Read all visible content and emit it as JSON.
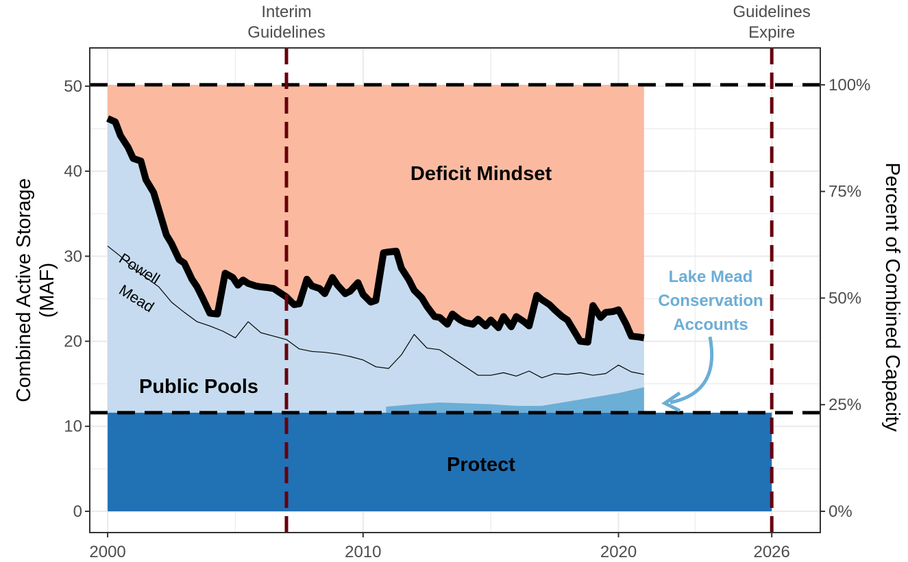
{
  "chart_data": {
    "type": "area",
    "title": "",
    "xlabel": "",
    "ylabel": "Combined Active Storage\n(MAF)",
    "y2label": "Percent of Combined Capacity",
    "xlim": [
      1999.3,
      2027.9
    ],
    "ylim": [
      -2.5,
      54.5
    ],
    "x_ticks": [
      2000,
      2010,
      2020,
      2026
    ],
    "y_ticks": [
      0,
      10,
      20,
      30,
      40,
      50
    ],
    "y2_ticks": [
      {
        "value": 0,
        "label": "0%"
      },
      {
        "value": 12.54,
        "label": "25%"
      },
      {
        "value": 25.08,
        "label": "50%"
      },
      {
        "value": 37.62,
        "label": "75%"
      },
      {
        "value": 50.16,
        "label": "100%"
      }
    ],
    "grid": true,
    "zones": {
      "deficit": {
        "label": "Deficit Mindset",
        "color": "#fbbaa0"
      },
      "public": {
        "label": "Public Pools",
        "color": "#c6dbef"
      },
      "protect": {
        "label": "Protect",
        "color": "#2171b5",
        "top": 11.6,
        "x_end": 2026
      }
    },
    "capacity_line": 50.16,
    "protect_line": 11.6,
    "vertical_guides": [
      {
        "x": 2007,
        "label": "Interim\nGuidelines",
        "color": "#67000d"
      },
      {
        "x": 2026,
        "label": "Guidelines\nExpire",
        "color": "#67000d"
      }
    ],
    "series": [
      {
        "name": "Combined",
        "color": "#000000",
        "x": [
          2000.0,
          2000.3,
          2000.5,
          2000.8,
          2001.0,
          2001.3,
          2001.5,
          2001.8,
          2002.0,
          2002.3,
          2002.5,
          2002.8,
          2003.0,
          2003.3,
          2003.5,
          2003.7,
          2004.0,
          2004.3,
          2004.6,
          2004.9,
          2005.1,
          2005.3,
          2005.5,
          2005.8,
          2006.0,
          2006.3,
          2006.5,
          2006.8,
          2007.0,
          2007.3,
          2007.5,
          2007.8,
          2008.0,
          2008.3,
          2008.5,
          2008.8,
          2009.0,
          2009.3,
          2009.5,
          2009.8,
          2010.0,
          2010.3,
          2010.5,
          2010.8,
          2011.0,
          2011.3,
          2011.5,
          2011.8,
          2012.0,
          2012.3,
          2012.5,
          2012.8,
          2013.0,
          2013.3,
          2013.5,
          2013.8,
          2014.0,
          2014.3,
          2014.5,
          2014.8,
          2015.0,
          2015.3,
          2015.5,
          2015.8,
          2016.0,
          2016.3,
          2016.5,
          2016.8,
          2017.0,
          2017.3,
          2017.5,
          2017.8,
          2018.0,
          2018.3,
          2018.5,
          2018.8,
          2019.0,
          2019.3,
          2019.5,
          2019.8,
          2020.0,
          2020.3,
          2020.5,
          2020.8,
          2021.0
        ],
        "values": [
          46.2,
          45.8,
          44.2,
          42.8,
          41.5,
          41.2,
          39.0,
          37.5,
          35.5,
          32.5,
          31.5,
          29.6,
          29.2,
          27.3,
          26.4,
          25.2,
          23.3,
          23.2,
          28.0,
          27.5,
          26.6,
          27.2,
          26.8,
          26.5,
          26.4,
          26.3,
          26.2,
          25.6,
          25.2,
          24.3,
          24.4,
          27.3,
          26.5,
          26.2,
          25.6,
          27.5,
          26.6,
          25.6,
          25.9,
          26.9,
          25.5,
          24.6,
          24.8,
          30.4,
          30.5,
          30.6,
          28.6,
          27.2,
          26.0,
          25.1,
          24.1,
          22.9,
          22.8,
          22.0,
          23.2,
          22.5,
          22.2,
          22.0,
          22.6,
          21.8,
          22.5,
          21.6,
          22.9,
          21.7,
          22.9,
          22.3,
          21.8,
          25.4,
          24.9,
          24.3,
          23.7,
          22.9,
          22.5,
          21.0,
          20.0,
          19.9,
          24.2,
          22.8,
          23.4,
          23.5,
          23.7,
          22.0,
          20.6,
          20.5,
          20.4
        ]
      },
      {
        "name": "Mead",
        "color": "#000000",
        "x": [
          2000.0,
          2000.5,
          2001.0,
          2001.5,
          2002.0,
          2002.5,
          2003.0,
          2003.5,
          2004.0,
          2004.5,
          2005.0,
          2005.5,
          2006.0,
          2006.5,
          2007.0,
          2007.5,
          2008.0,
          2008.5,
          2009.0,
          2009.5,
          2010.0,
          2010.5,
          2011.0,
          2011.5,
          2012.0,
          2012.5,
          2013.0,
          2013.5,
          2014.0,
          2014.5,
          2015.0,
          2015.5,
          2016.0,
          2016.5,
          2017.0,
          2017.5,
          2018.0,
          2018.5,
          2019.0,
          2019.5,
          2020.0,
          2020.5,
          2021.0
        ],
        "values": [
          31.2,
          30.0,
          28.6,
          27.5,
          26.4,
          24.6,
          23.4,
          22.3,
          21.8,
          21.2,
          20.4,
          22.3,
          21.0,
          20.6,
          20.2,
          19.1,
          18.8,
          18.7,
          18.5,
          18.2,
          17.8,
          17.0,
          16.8,
          18.4,
          20.8,
          19.2,
          19.0,
          18.0,
          17.0,
          16.0,
          16.0,
          16.3,
          15.9,
          16.5,
          15.7,
          16.2,
          16.1,
          16.3,
          16.0,
          16.2,
          17.2,
          16.4,
          16.1
        ]
      }
    ],
    "annotations": [
      {
        "text": "Powell",
        "x": 2000.4,
        "y": 29.4,
        "angle": 32
      },
      {
        "text": "Mead",
        "x": 2000.4,
        "y": 25.7,
        "angle": 32
      }
    ],
    "conservation": {
      "label": "Lake Mead\nConservation\nAccounts",
      "color": "#6baed6",
      "x": [
        2010.9,
        2012.0,
        2013.0,
        2014.0,
        2015.0,
        2016.0,
        2017.0,
        2018.0,
        2019.0,
        2020.0,
        2021.0
      ],
      "values": [
        0.7,
        1.0,
        1.2,
        1.1,
        1.0,
        0.8,
        0.8,
        1.3,
        1.8,
        2.3,
        3.0
      ]
    }
  }
}
